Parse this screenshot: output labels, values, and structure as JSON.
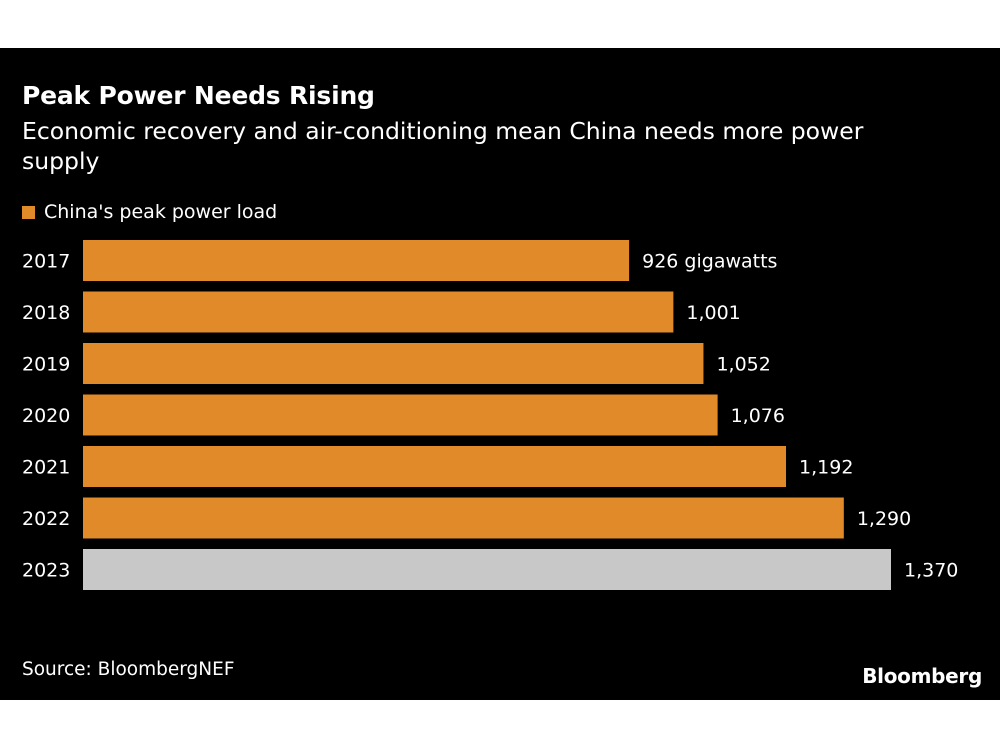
{
  "title": "Peak Power Needs Rising",
  "subtitle": "Economic recovery and air-conditioning mean China needs more power supply",
  "legend": {
    "label": "China's peak power load",
    "color": "#e08a2a"
  },
  "source": "Source: BloombergNEF",
  "brand": "Bloomberg",
  "colors": {
    "background": "#000000",
    "bar": "#e08a2a",
    "highlight_bar": "#c8c8c8",
    "text": "#ffffff"
  },
  "chart_data": {
    "type": "bar",
    "orientation": "horizontal",
    "categories": [
      "2017",
      "2018",
      "2019",
      "2020",
      "2021",
      "2022",
      "2023"
    ],
    "series": [
      {
        "name": "China's peak power load",
        "values": [
          926,
          1001,
          1052,
          1076,
          1192,
          1290,
          1370
        ]
      }
    ],
    "data_labels": [
      "926 gigawatts",
      "1,001",
      "1,052",
      "1,076",
      "1,192",
      "1,290",
      "1,370"
    ],
    "highlight_index": 6,
    "xlim": [
      0,
      1370
    ],
    "grid": false,
    "legend_position": "top-left"
  }
}
